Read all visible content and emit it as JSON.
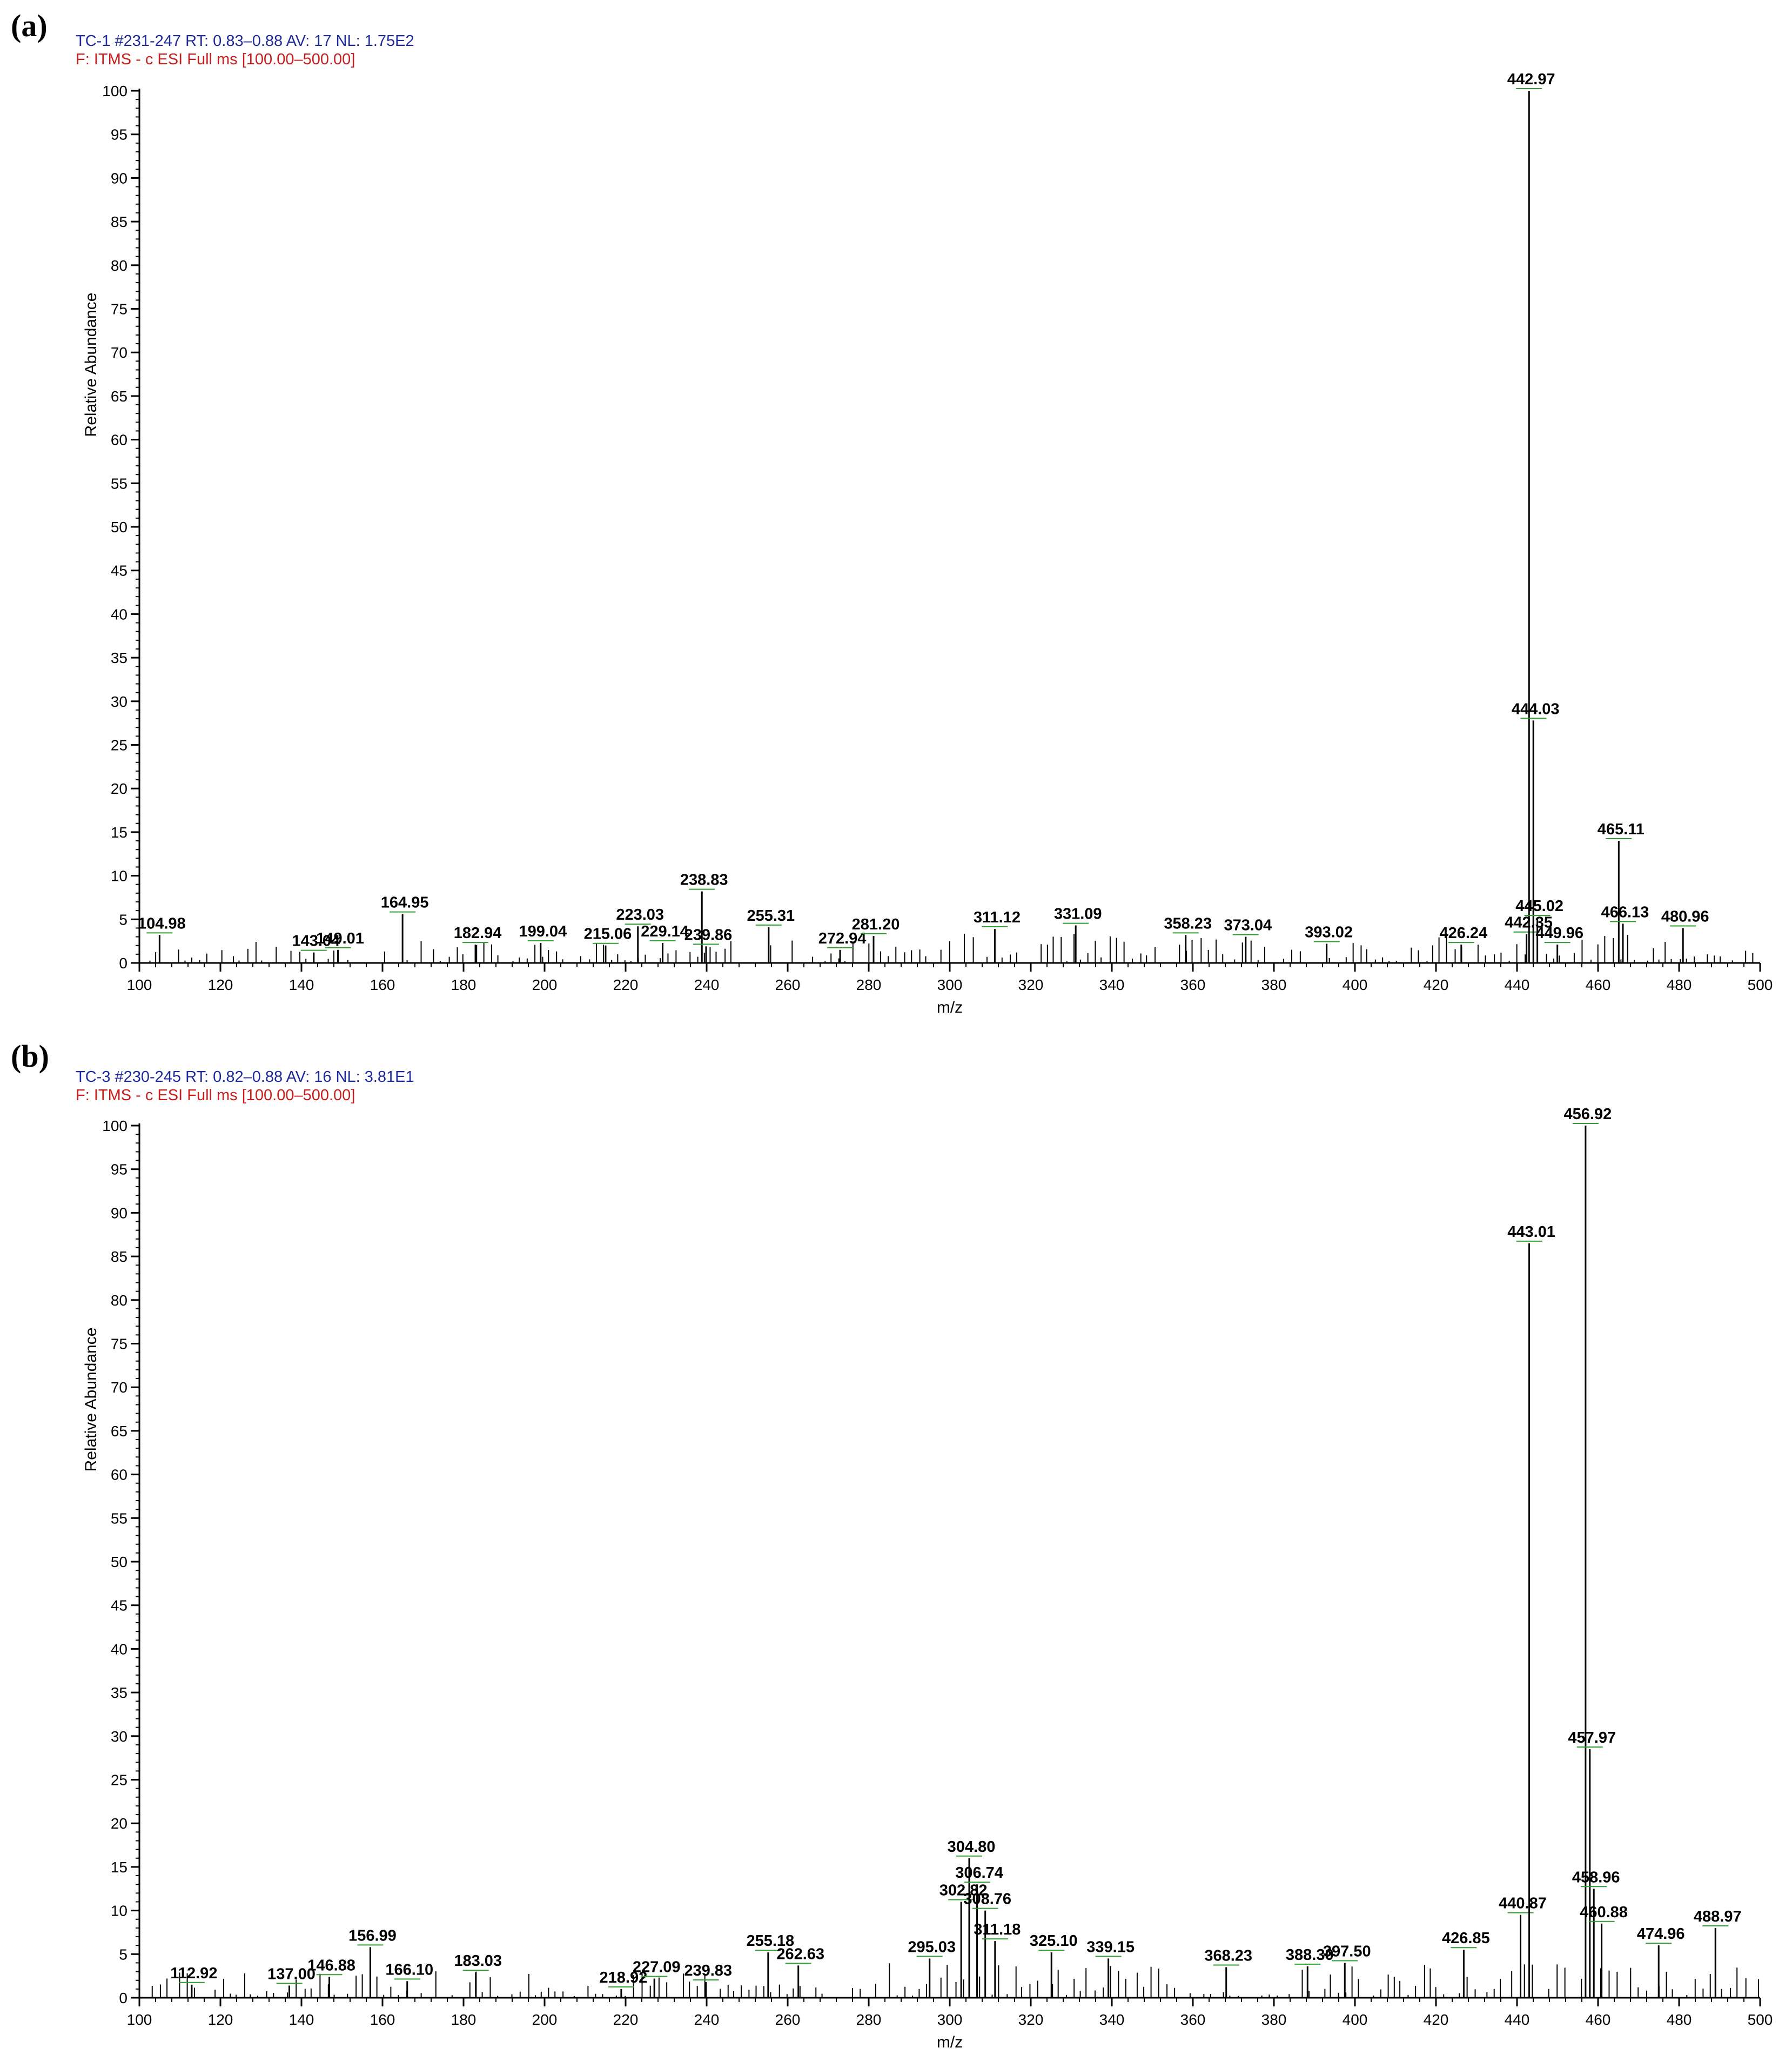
{
  "figure": {
    "panels": [
      "(a)",
      "(b)"
    ]
  },
  "colors": {
    "stem": "#000000",
    "axis": "#000000",
    "header_scan": "#1f2a9c",
    "header_filter": "#c81e1e",
    "label_marker": "#2e9c2e"
  },
  "chart_data": [
    {
      "type": "bar",
      "panel": "(a)",
      "header": {
        "line1": "TC-1 #231-247  RT: 0.83–0.88  AV: 17  NL: 1.75E2",
        "line2": "F: ITMS - c ESI Full ms [100.00–500.00]"
      },
      "xlabel": "m/z",
      "ylabel": "Relative Abundance",
      "xlim": [
        100,
        500
      ],
      "ylim": [
        0,
        100
      ],
      "xticks": [
        100,
        120,
        140,
        160,
        180,
        200,
        220,
        240,
        260,
        280,
        300,
        320,
        340,
        360,
        380,
        400,
        420,
        440,
        460,
        480,
        500
      ],
      "yticks": [
        0,
        5,
        10,
        15,
        20,
        25,
        30,
        35,
        40,
        45,
        50,
        55,
        60,
        65,
        70,
        75,
        80,
        85,
        90,
        95,
        100
      ],
      "labeled_peaks": [
        {
          "mz": 104.98,
          "y": 3.2,
          "label": "104.98"
        },
        {
          "mz": 143.04,
          "y": 1.2,
          "label": "143.04"
        },
        {
          "mz": 149.01,
          "y": 1.5,
          "label": "149.01"
        },
        {
          "mz": 164.95,
          "y": 5.6,
          "label": "164.95"
        },
        {
          "mz": 182.94,
          "y": 2.1,
          "label": "182.94"
        },
        {
          "mz": 199.04,
          "y": 2.3,
          "label": "199.04"
        },
        {
          "mz": 215.06,
          "y": 2.0,
          "label": "215.06"
        },
        {
          "mz": 223.03,
          "y": 4.2,
          "label": "223.03"
        },
        {
          "mz": 229.14,
          "y": 2.3,
          "label": "229.14"
        },
        {
          "mz": 238.83,
          "y": 8.2,
          "label": "238.83"
        },
        {
          "mz": 239.86,
          "y": 1.9,
          "label": "239.86"
        },
        {
          "mz": 255.31,
          "y": 4.1,
          "label": "255.31"
        },
        {
          "mz": 272.94,
          "y": 1.5,
          "label": "272.94"
        },
        {
          "mz": 281.2,
          "y": 3.1,
          "label": "281.20"
        },
        {
          "mz": 311.12,
          "y": 3.9,
          "label": "311.12"
        },
        {
          "mz": 331.09,
          "y": 4.3,
          "label": "331.09"
        },
        {
          "mz": 358.23,
          "y": 3.2,
          "label": "358.23"
        },
        {
          "mz": 373.04,
          "y": 3.0,
          "label": "373.04"
        },
        {
          "mz": 393.02,
          "y": 2.2,
          "label": "393.02"
        },
        {
          "mz": 426.24,
          "y": 2.1,
          "label": "426.24"
        },
        {
          "mz": 442.35,
          "y": 3.3,
          "label": "442.35"
        },
        {
          "mz": 442.97,
          "y": 100,
          "label": "442.97"
        },
        {
          "mz": 444.03,
          "y": 27.8,
          "label": "444.03"
        },
        {
          "mz": 445.02,
          "y": 5.2,
          "label": "445.02"
        },
        {
          "mz": 449.96,
          "y": 2.1,
          "label": "449.96"
        },
        {
          "mz": 465.11,
          "y": 14.0,
          "label": "465.11"
        },
        {
          "mz": 466.13,
          "y": 4.5,
          "label": "466.13"
        },
        {
          "mz": 480.96,
          "y": 4.0,
          "label": "480.96"
        }
      ]
    },
    {
      "type": "bar",
      "panel": "(b)",
      "header": {
        "line1": "TC-3 #230-245  RT: 0.82–0.88  AV: 16  NL: 3.81E1",
        "line2": "F: ITMS - c ESI Full ms [100.00–500.00]"
      },
      "xlabel": "m/z",
      "ylabel": "Relative Abundance",
      "xlim": [
        100,
        500
      ],
      "ylim": [
        0,
        100
      ],
      "xticks": [
        100,
        120,
        140,
        160,
        180,
        200,
        220,
        240,
        260,
        280,
        300,
        320,
        340,
        360,
        380,
        400,
        420,
        440,
        460,
        480,
        500
      ],
      "yticks": [
        0,
        5,
        10,
        15,
        20,
        25,
        30,
        35,
        40,
        45,
        50,
        55,
        60,
        65,
        70,
        75,
        80,
        85,
        90,
        95,
        100
      ],
      "labeled_peaks": [
        {
          "mz": 112.92,
          "y": 1.5,
          "label": "112.92"
        },
        {
          "mz": 137.0,
          "y": 1.4,
          "label": "137.00"
        },
        {
          "mz": 146.88,
          "y": 2.4,
          "label": "146.88"
        },
        {
          "mz": 156.99,
          "y": 5.8,
          "label": "156.99"
        },
        {
          "mz": 166.1,
          "y": 1.9,
          "label": "166.10"
        },
        {
          "mz": 183.03,
          "y": 2.9,
          "label": "183.03"
        },
        {
          "mz": 218.92,
          "y": 1.0,
          "label": "218.92"
        },
        {
          "mz": 227.09,
          "y": 2.2,
          "label": "227.09"
        },
        {
          "mz": 239.83,
          "y": 1.8,
          "label": "239.83"
        },
        {
          "mz": 255.18,
          "y": 5.2,
          "label": "255.18"
        },
        {
          "mz": 262.63,
          "y": 3.7,
          "label": "262.63"
        },
        {
          "mz": 295.03,
          "y": 4.5,
          "label": "295.03"
        },
        {
          "mz": 302.82,
          "y": 11.0,
          "label": "302.82"
        },
        {
          "mz": 304.8,
          "y": 16.0,
          "label": "304.80"
        },
        {
          "mz": 306.74,
          "y": 13.0,
          "label": "306.74"
        },
        {
          "mz": 308.76,
          "y": 10.0,
          "label": "308.76"
        },
        {
          "mz": 311.18,
          "y": 6.5,
          "label": "311.18"
        },
        {
          "mz": 325.1,
          "y": 5.2,
          "label": "325.10"
        },
        {
          "mz": 339.15,
          "y": 4.5,
          "label": "339.15"
        },
        {
          "mz": 368.23,
          "y": 3.5,
          "label": "368.23"
        },
        {
          "mz": 388.3,
          "y": 3.6,
          "label": "388.30"
        },
        {
          "mz": 397.5,
          "y": 4.0,
          "label": "397.50"
        },
        {
          "mz": 426.85,
          "y": 5.5,
          "label": "426.85"
        },
        {
          "mz": 440.87,
          "y": 9.5,
          "label": "440.87"
        },
        {
          "mz": 443.01,
          "y": 86.5,
          "label": "443.01"
        },
        {
          "mz": 456.92,
          "y": 100,
          "label": "456.92"
        },
        {
          "mz": 457.97,
          "y": 28.5,
          "label": "457.97"
        },
        {
          "mz": 458.96,
          "y": 12.5,
          "label": "458.96"
        },
        {
          "mz": 460.88,
          "y": 8.5,
          "label": "460.88"
        },
        {
          "mz": 474.96,
          "y": 6.0,
          "label": "474.96"
        },
        {
          "mz": 488.97,
          "y": 8.0,
          "label": "488.97"
        }
      ]
    }
  ]
}
